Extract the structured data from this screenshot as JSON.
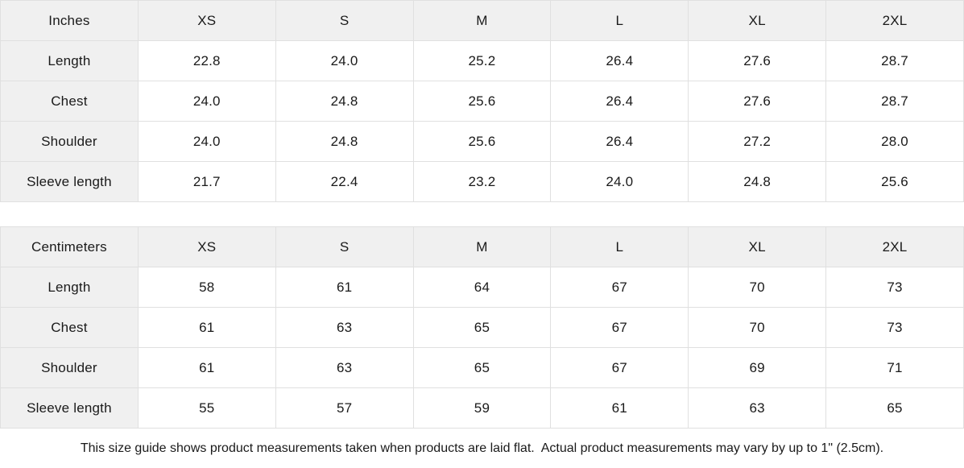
{
  "theme": {
    "header_bg": "#f0f0f0",
    "border_color": "#e0e0e0",
    "cell_bg": "#ffffff",
    "text_color": "#1a1a1a"
  },
  "tables": [
    {
      "unit_label": "Inches",
      "columns": [
        "XS",
        "S",
        "M",
        "L",
        "XL",
        "2XL"
      ],
      "rows": [
        {
          "label": "Length",
          "values": [
            "22.8",
            "24.0",
            "25.2",
            "26.4",
            "27.6",
            "28.7"
          ]
        },
        {
          "label": "Chest",
          "values": [
            "24.0",
            "24.8",
            "25.6",
            "26.4",
            "27.6",
            "28.7"
          ]
        },
        {
          "label": "Shoulder",
          "values": [
            "24.0",
            "24.8",
            "25.6",
            "26.4",
            "27.2",
            "28.0"
          ]
        },
        {
          "label": "Sleeve length",
          "values": [
            "21.7",
            "22.4",
            "23.2",
            "24.0",
            "24.8",
            "25.6"
          ]
        }
      ]
    },
    {
      "unit_label": "Centimeters",
      "columns": [
        "XS",
        "S",
        "M",
        "L",
        "XL",
        "2XL"
      ],
      "rows": [
        {
          "label": "Length",
          "values": [
            "58",
            "61",
            "64",
            "67",
            "70",
            "73"
          ]
        },
        {
          "label": "Chest",
          "values": [
            "61",
            "63",
            "65",
            "67",
            "70",
            "73"
          ]
        },
        {
          "label": "Shoulder",
          "values": [
            "61",
            "63",
            "65",
            "67",
            "69",
            "71"
          ]
        },
        {
          "label": "Sleeve length",
          "values": [
            "55",
            "57",
            "59",
            "61",
            "63",
            "65"
          ]
        }
      ]
    }
  ],
  "footer": {
    "note": "This size guide shows product measurements taken when products are laid flat.  Actual product measurements may vary by up to 1\" (2.5cm)."
  }
}
